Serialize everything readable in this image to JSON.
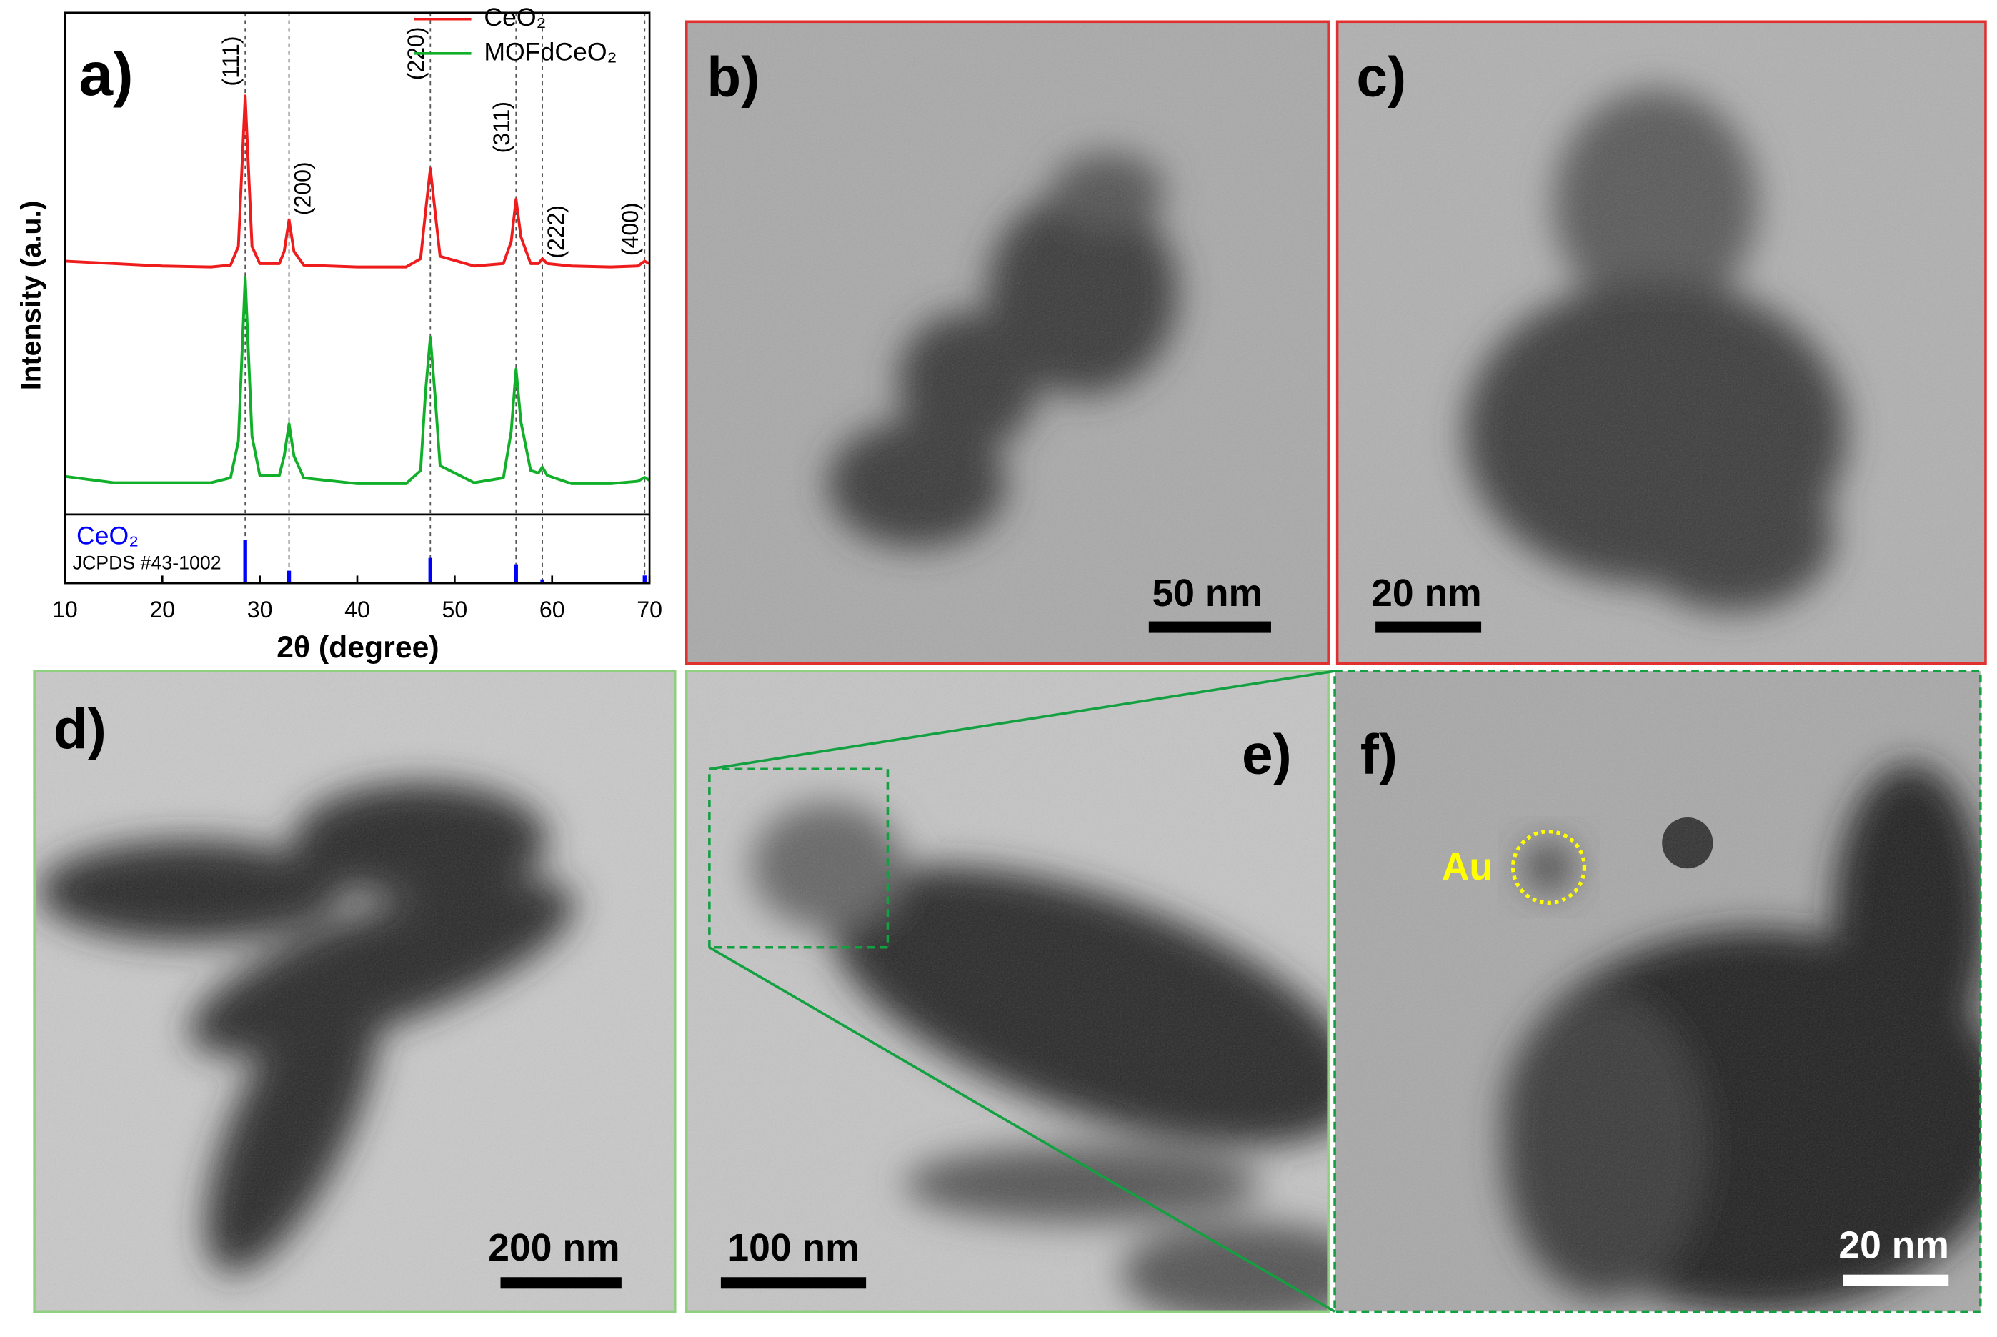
{
  "chart_data": {
    "type": "line",
    "title": "a)",
    "xlabel": "2θ (degree)",
    "ylabel": "Intensity (a.u.)",
    "xlim": [
      10,
      70
    ],
    "xticks": [
      10,
      20,
      30,
      40,
      50,
      60,
      70
    ],
    "ylim": [
      0,
      103
    ],
    "x": [
      10,
      15,
      20,
      25,
      27,
      27.8,
      28.5,
      29.2,
      30,
      32,
      32.5,
      33,
      33.5,
      34.5,
      40,
      45,
      46.5,
      47,
      47.5,
      48,
      48.5,
      52,
      55,
      55.8,
      56.3,
      56.8,
      57.8,
      58.6,
      59,
      59.5,
      62,
      66,
      68.8,
      69.5,
      70
    ],
    "series": [
      {
        "name": "CeO₂",
        "color": "#ee1c1c",
        "values": [
          52,
          51.5,
          51,
          50.8,
          51.2,
          55,
          85.9,
          55,
          51.5,
          51.5,
          54,
          60.5,
          54,
          51.2,
          50.8,
          50.8,
          52.5,
          62,
          71,
          62,
          53,
          51,
          51.5,
          56,
          64.7,
          57,
          51.5,
          51.5,
          52.5,
          51.5,
          51,
          50.8,
          51,
          52,
          51.5
        ]
      },
      {
        "name": "MOFdCeO₂",
        "color": "#12b02a",
        "values": [
          7.8,
          6.5,
          6.5,
          6.5,
          7.5,
          15,
          48.7,
          16,
          8,
          8,
          12,
          18.6,
          12,
          7.5,
          6.3,
          6.3,
          9,
          25,
          36.4,
          24,
          10,
          6.5,
          7.5,
          17,
          29.8,
          19,
          9,
          8.5,
          9.7,
          8,
          6.3,
          6.3,
          6.8,
          7.6,
          7
        ]
      }
    ],
    "peaks": [
      {
        "x": 28.5,
        "label": "(111)"
      },
      {
        "x": 33,
        "label": "(200)"
      },
      {
        "x": 47.5,
        "label": "(220)"
      },
      {
        "x": 56.3,
        "label": "(311)"
      },
      {
        "x": 59,
        "label": "(222)"
      },
      {
        "x": 69.5,
        "label": "(400)"
      }
    ],
    "reference": {
      "name": "CeO₂",
      "label": "JCPDS #43-1002",
      "color": "#0000ff",
      "ylim": [
        0,
        160
      ],
      "x": [
        28.5,
        33,
        47.5,
        56.3,
        59,
        69.5
      ],
      "values": [
        100,
        29,
        59,
        44,
        9,
        18
      ]
    }
  },
  "panels": [
    {
      "label": "b)",
      "scale_bar": "50 nm"
    },
    {
      "label": "c)",
      "scale_bar": "20 nm"
    },
    {
      "label": "d)",
      "scale_bar": "200 nm"
    },
    {
      "label": "e)",
      "scale_bar": "100 nm"
    },
    {
      "label": "f)",
      "scale_bar": "20 nm",
      "annotation": "Au"
    }
  ]
}
